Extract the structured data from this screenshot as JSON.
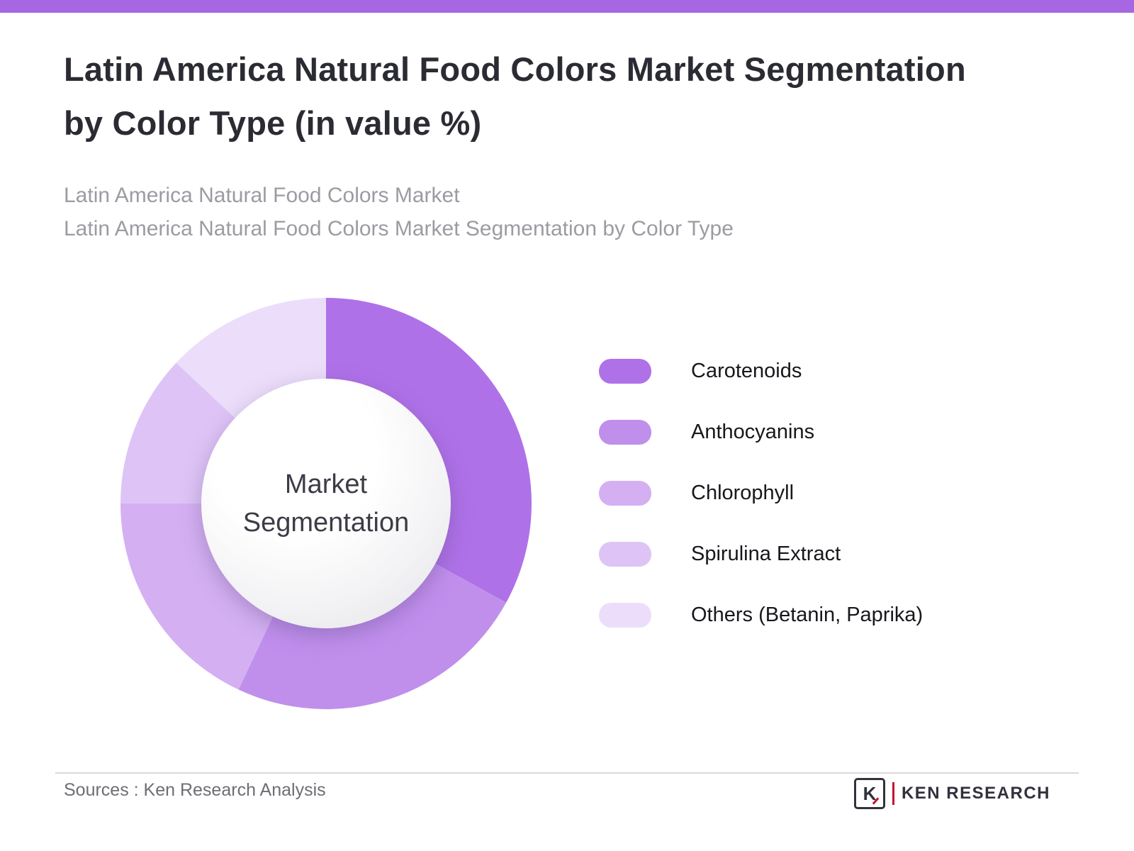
{
  "theme": {
    "top_bar_color": "#A767E2",
    "title_color": "#2B2B33",
    "subtitle_color": "#9B9BA3"
  },
  "header": {
    "title_line1": "Latin America Natural Food Colors Market Segmentation",
    "title_line2": "by Color Type (in value %)",
    "subtitle_line1": "Latin America Natural Food Colors Market",
    "subtitle_line2": "Latin America Natural Food Colors Market Segmentation by Color Type"
  },
  "chart_data": {
    "type": "pie",
    "variant": "donut",
    "title": "Latin America Natural Food Colors Market Segmentation by Color Type (in value %)",
    "center_label": "Market Segmentation",
    "start_angle_deg": 0,
    "direction": "clockwise",
    "categories": [
      "Carotenoids",
      "Anthocyanins",
      "Chlorophyll",
      "Spirulina Extract",
      "Others (Betanin, Paprika)"
    ],
    "values": [
      33,
      24,
      18,
      12,
      13
    ],
    "unit": "percent",
    "colors": [
      "#AF71E8",
      "#C08FEC",
      "#D4B0F2",
      "#DEC4F6",
      "#ECDEFA"
    ],
    "legend_position": "right",
    "data_labels": false
  },
  "footer": {
    "source_text": "Sources : Ken Research Analysis",
    "logo_letter": "K",
    "logo_text": "KEN RESEARCH"
  }
}
